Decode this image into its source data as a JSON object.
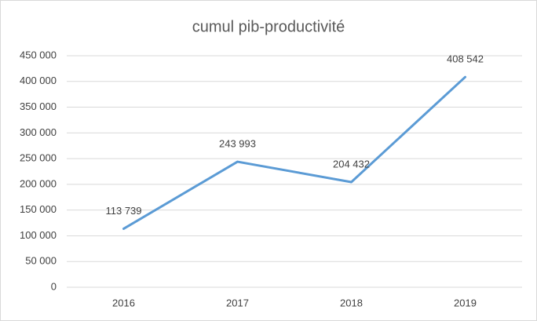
{
  "chart_data": {
    "type": "line",
    "title": "cumul pib-productivité",
    "categories": [
      "2016",
      "2017",
      "2018",
      "2019"
    ],
    "series": [
      {
        "name": "cumul pib-productivité",
        "color": "#5b9bd5",
        "values": [
          113739,
          243993,
          204432,
          408542
        ],
        "value_labels": [
          "113 739",
          "243 993",
          "204 432",
          "408 542"
        ]
      }
    ],
    "ylim": [
      0,
      450000
    ],
    "yticks": [
      0,
      {
        "value": 50000,
        "label": "50 000"
      },
      {
        "value": 100000,
        "label": "100 000"
      },
      {
        "value": 150000,
        "label": "150 000"
      },
      {
        "value": 200000,
        "label": "200 000"
      },
      {
        "value": 250000,
        "label": "250 000"
      },
      {
        "value": 300000,
        "label": "300 000"
      },
      {
        "value": 350000,
        "label": "350 000"
      },
      {
        "value": 400000,
        "label": "400 000"
      },
      {
        "value": 450000,
        "label": "450 000"
      }
    ],
    "grid": true
  }
}
